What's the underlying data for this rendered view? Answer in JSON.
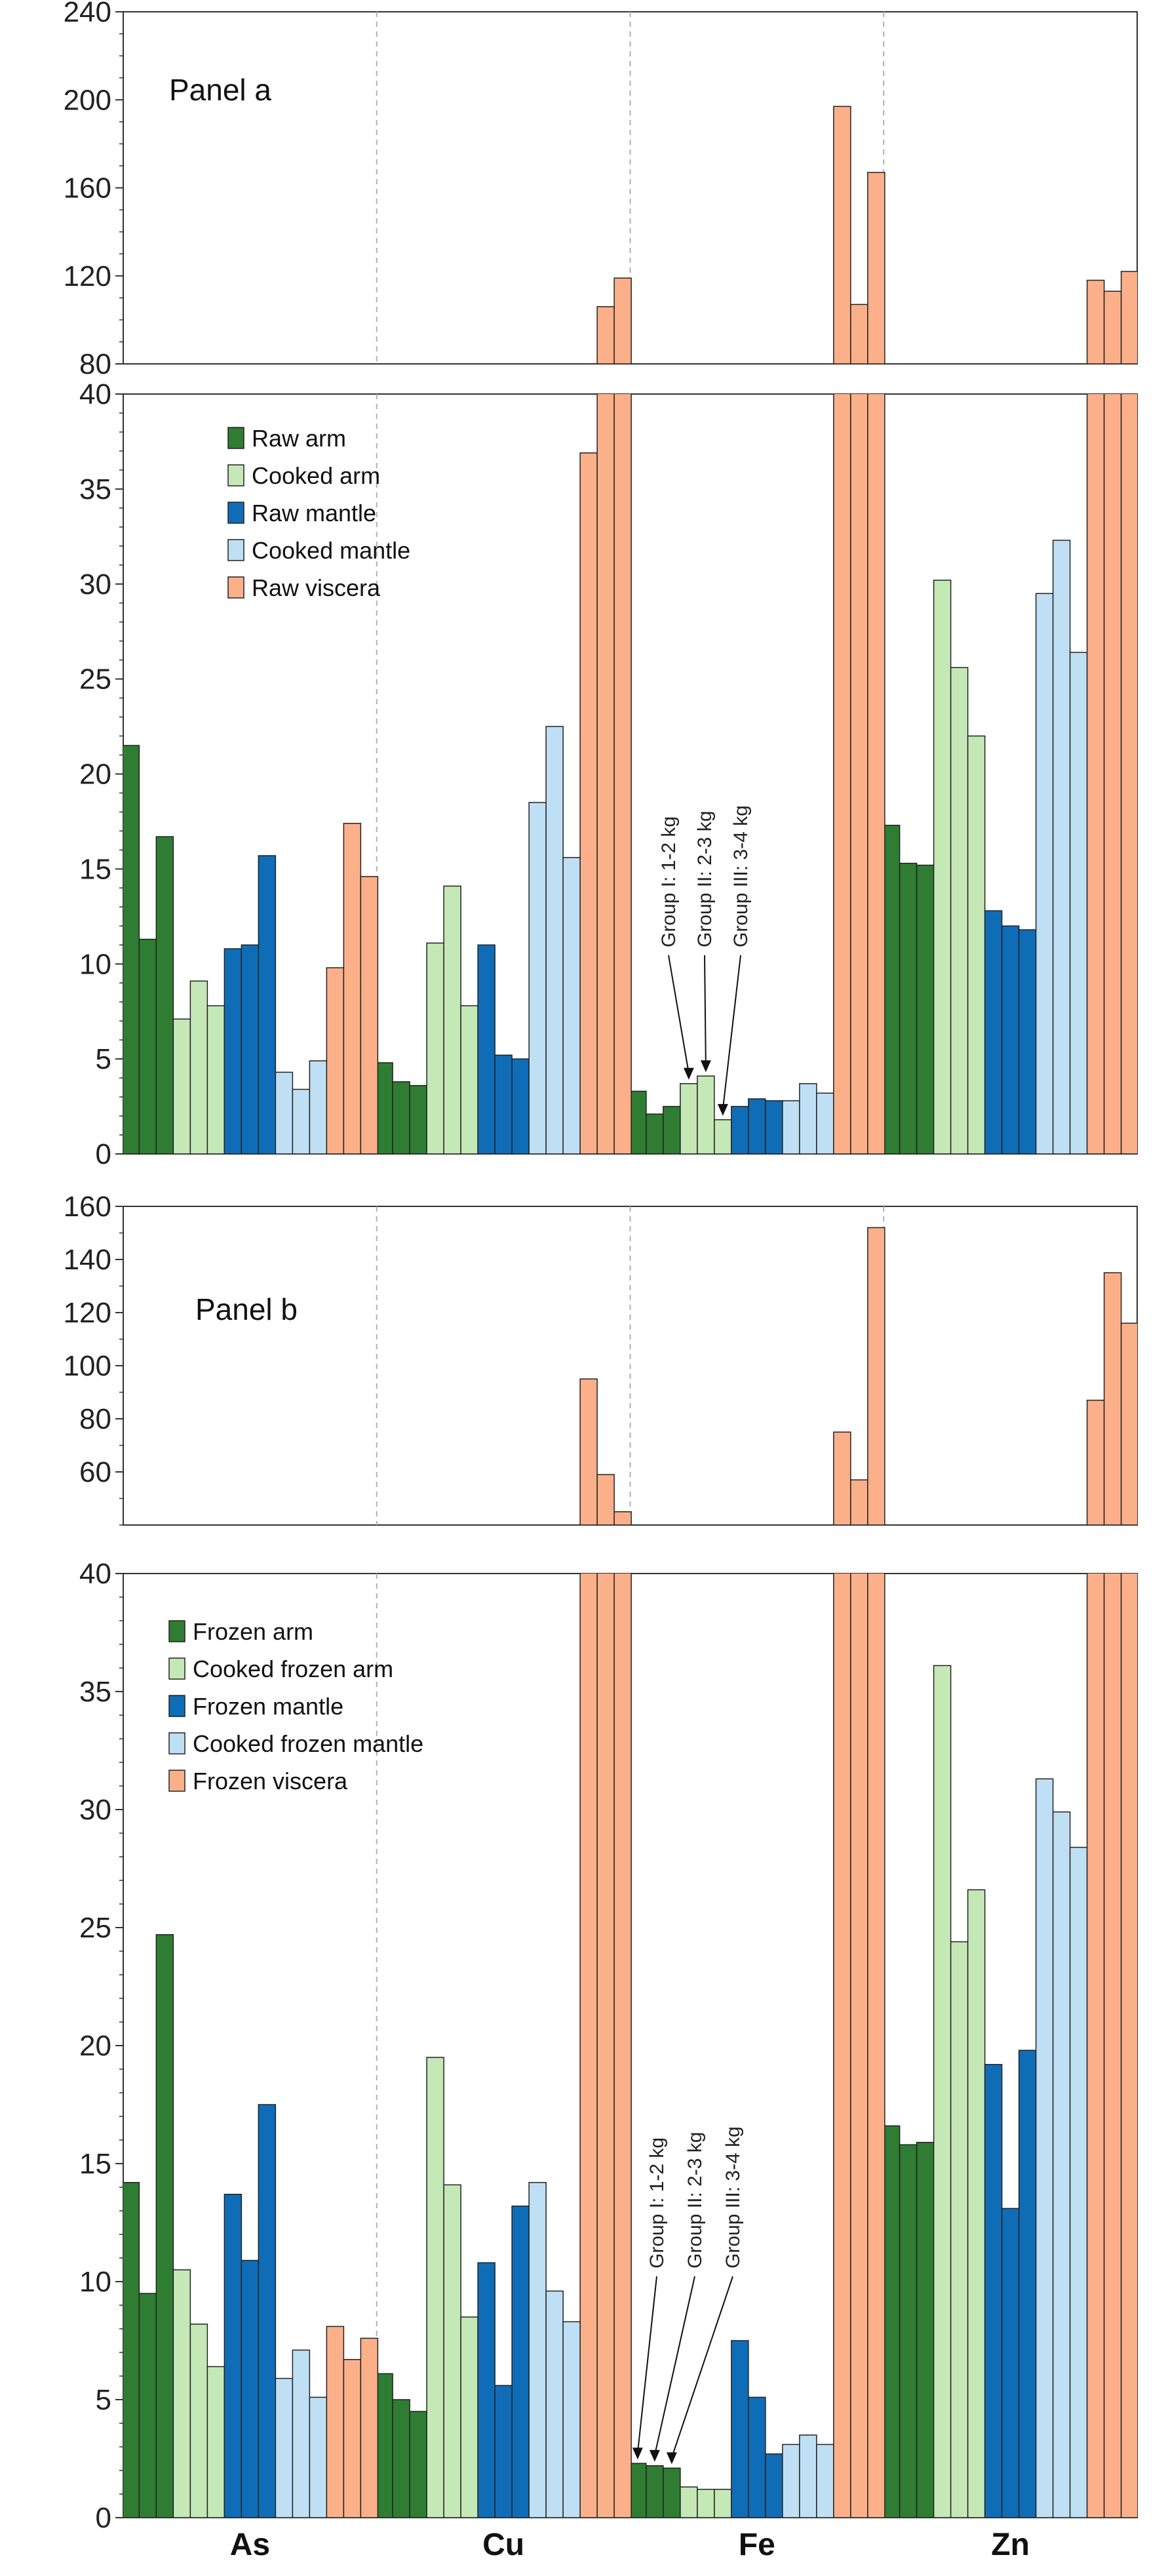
{
  "chart_data": {
    "type": "bar",
    "categories": [
      "As",
      "Cu",
      "Fe",
      "Zn"
    ],
    "groups": [
      "Group I: 1-2 kg",
      "Group II: 2-3 kg",
      "Group III: 3-4 kg"
    ],
    "colors": {
      "dark_green": "#2e7d32",
      "light_green": "#c5e8b7",
      "dark_blue": "#0f6db8",
      "light_blue": "#bfdff5",
      "orange": "#fbb08a"
    },
    "panels": [
      {
        "title": "Panel a",
        "upper_ylim": [
          80,
          240
        ],
        "upper_ticks": [
          "80",
          "120",
          "160",
          "200",
          "240"
        ],
        "lower_ylim": [
          0,
          40
        ],
        "lower_ticks": [
          "0",
          "5",
          "10",
          "15",
          "20",
          "25",
          "30",
          "35",
          "40"
        ],
        "series": [
          {
            "name": "Raw arm",
            "color": "dark_green",
            "values": {
              "As": [
                21.5,
                11.3,
                16.7
              ],
              "Cu": [
                4.8,
                3.8,
                3.6
              ],
              "Fe": [
                3.3,
                2.1,
                2.5
              ],
              "Zn": [
                17.3,
                15.3,
                15.2
              ]
            }
          },
          {
            "name": "Cooked arm",
            "color": "light_green",
            "values": {
              "As": [
                7.1,
                9.1,
                7.8
              ],
              "Cu": [
                11.1,
                14.1,
                7.8
              ],
              "Fe": [
                3.7,
                4.1,
                1.8
              ],
              "Zn": [
                30.2,
                25.6,
                22.0
              ]
            }
          },
          {
            "name": "Raw mantle",
            "color": "dark_blue",
            "values": {
              "As": [
                10.8,
                11.0,
                15.7
              ],
              "Cu": [
                11.0,
                5.2,
                5.0
              ],
              "Fe": [
                2.5,
                2.9,
                2.8
              ],
              "Zn": [
                12.8,
                12.0,
                11.8
              ]
            }
          },
          {
            "name": "Cooked mantle",
            "color": "light_blue",
            "values": {
              "As": [
                4.3,
                3.4,
                4.9
              ],
              "Cu": [
                18.5,
                22.5,
                15.6
              ],
              "Fe": [
                2.8,
                3.7,
                3.2
              ],
              "Zn": [
                29.5,
                32.3,
                26.4
              ]
            }
          },
          {
            "name": "Raw viscera",
            "color": "orange",
            "values": {
              "As": [
                9.8,
                17.4,
                14.6
              ],
              "Cu": [
                36.9,
                106,
                119
              ],
              "Fe": [
                197,
                107,
                167
              ],
              "Zn": [
                118,
                113,
                122
              ]
            }
          }
        ],
        "annotations": [
          "Group I: 1-2 kg",
          "Group II: 2-3 kg",
          "Group III: 3-4 kg"
        ]
      },
      {
        "title": "Panel b",
        "upper_ylim": [
          40,
          160
        ],
        "upper_ticks": [
          "60",
          "80",
          "100",
          "120",
          "140",
          "160"
        ],
        "lower_ylim": [
          0,
          40
        ],
        "lower_ticks": [
          "0",
          "5",
          "10",
          "15",
          "20",
          "25",
          "30",
          "35",
          "40"
        ],
        "series": [
          {
            "name": "Frozen arm",
            "color": "dark_green",
            "values": {
              "As": [
                14.2,
                9.5,
                24.7
              ],
              "Cu": [
                6.1,
                5.0,
                4.5
              ],
              "Fe": [
                2.3,
                2.2,
                2.1
              ],
              "Zn": [
                16.6,
                15.8,
                15.9
              ]
            }
          },
          {
            "name": "Cooked frozen arm",
            "color": "light_green",
            "values": {
              "As": [
                10.5,
                8.2,
                6.4
              ],
              "Cu": [
                19.5,
                14.1,
                8.5
              ],
              "Fe": [
                1.3,
                1.2,
                1.2
              ],
              "Zn": [
                36.1,
                24.4,
                26.6
              ]
            }
          },
          {
            "name": "Frozen mantle",
            "color": "dark_blue",
            "values": {
              "As": [
                13.7,
                10.9,
                17.5
              ],
              "Cu": [
                10.8,
                5.6,
                13.2
              ],
              "Fe": [
                7.5,
                5.1,
                2.7
              ],
              "Zn": [
                19.2,
                13.1,
                19.8
              ]
            }
          },
          {
            "name": "Cooked frozen mantle",
            "color": "light_blue",
            "values": {
              "As": [
                5.9,
                7.1,
                5.1
              ],
              "Cu": [
                14.2,
                9.6,
                8.3
              ],
              "Fe": [
                3.1,
                3.5,
                3.1
              ],
              "Zn": [
                31.3,
                29.9,
                28.4
              ]
            }
          },
          {
            "name": "Frozen viscera",
            "color": "orange",
            "values": {
              "As": [
                8.1,
                6.7,
                7.6
              ],
              "Cu": [
                95,
                59,
                45
              ],
              "Fe": [
                75,
                57,
                152
              ],
              "Zn": [
                87,
                135,
                116
              ]
            }
          }
        ],
        "annotations": [
          "Group I: 1-2 kg",
          "Group II: 2-3 kg",
          "Group III: 3-4 kg"
        ]
      }
    ]
  }
}
